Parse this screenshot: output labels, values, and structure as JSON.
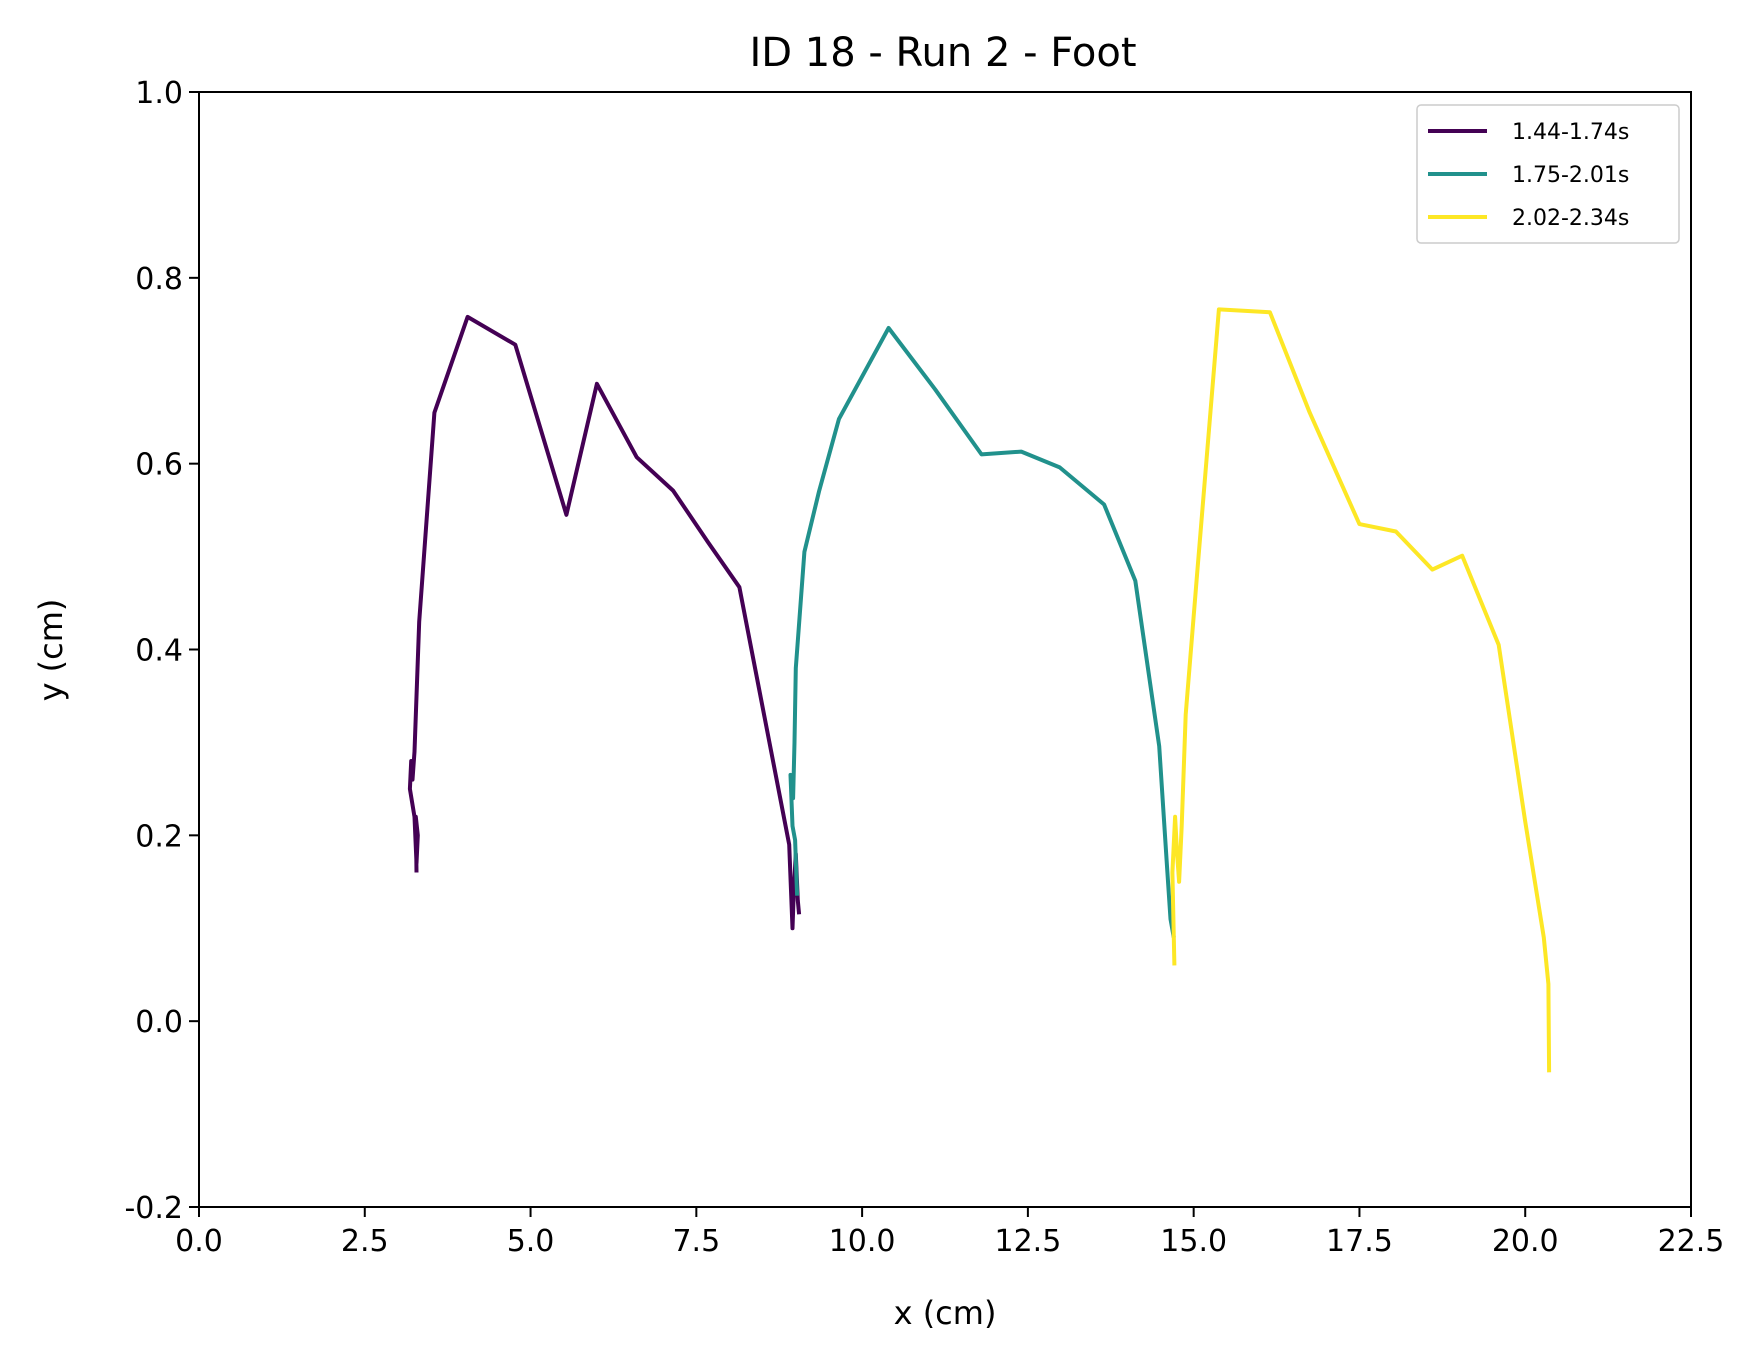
{
  "chart_data": {
    "type": "line",
    "title": "ID 18 - Run 2 - Foot",
    "xlabel": "x (cm)",
    "ylabel": "y (cm)",
    "xlim": [
      0.0,
      22.5
    ],
    "ylim": [
      -0.2,
      1.0
    ],
    "xticks": [
      "0.0",
      "2.5",
      "5.0",
      "7.5",
      "10.0",
      "12.5",
      "15.0",
      "17.5",
      "20.0",
      "22.5"
    ],
    "yticks": [
      "-0.2",
      "0.0",
      "0.2",
      "0.4",
      "0.6",
      "0.8",
      "1.0"
    ],
    "grid": false,
    "legend_position": "upper-right",
    "series": [
      {
        "name": "1.44-1.74s",
        "color": "#440154",
        "x": [
          3.28,
          3.27,
          3.3,
          3.28,
          3.25,
          3.18,
          3.2,
          3.22,
          3.25,
          3.32,
          3.55,
          4.05,
          4.77,
          5.54,
          6.0,
          6.6,
          7.15,
          7.68,
          8.15,
          8.9,
          8.95,
          8.97,
          9.0,
          9.03,
          9.05
        ],
        "y": [
          0.16,
          0.22,
          0.2,
          0.17,
          0.22,
          0.25,
          0.28,
          0.26,
          0.29,
          0.43,
          0.655,
          0.758,
          0.728,
          0.545,
          0.686,
          0.607,
          0.571,
          0.515,
          0.467,
          0.19,
          0.1,
          0.14,
          0.18,
          0.13,
          0.115
        ]
      },
      {
        "name": "1.75-2.01s",
        "color": "#21918c",
        "x": [
          9.02,
          8.99,
          8.95,
          8.92,
          8.96,
          8.98,
          9.0,
          9.13,
          9.35,
          9.65,
          10.4,
          11.1,
          11.8,
          12.4,
          12.98,
          13.65,
          14.12,
          14.48,
          14.6,
          14.65,
          14.7
        ],
        "y": [
          0.135,
          0.195,
          0.21,
          0.265,
          0.24,
          0.3,
          0.38,
          0.505,
          0.57,
          0.648,
          0.746,
          0.68,
          0.61,
          0.613,
          0.596,
          0.556,
          0.474,
          0.296,
          0.165,
          0.11,
          0.09
        ]
      },
      {
        "name": "2.02-2.34s",
        "color": "#fde725",
        "x": [
          14.71,
          14.68,
          14.72,
          14.75,
          14.78,
          14.82,
          14.88,
          15.05,
          15.38,
          16.15,
          16.75,
          17.5,
          18.05,
          18.6,
          19.05,
          19.6,
          20.0,
          20.28,
          20.35,
          20.36
        ],
        "y": [
          0.06,
          0.16,
          0.22,
          0.18,
          0.15,
          0.21,
          0.33,
          0.48,
          0.766,
          0.763,
          0.655,
          0.535,
          0.527,
          0.486,
          0.501,
          0.405,
          0.215,
          0.09,
          0.04,
          -0.055
        ]
      }
    ]
  }
}
